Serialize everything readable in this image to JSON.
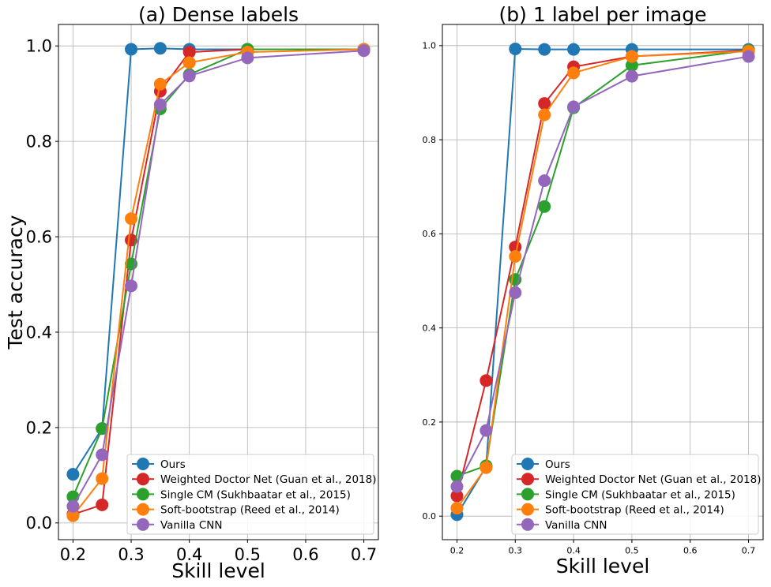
{
  "colors": {
    "Ours": "#1f77b4",
    "Weighted Doctor Net (Guan et al., 2018)": "#d62728",
    "Single CM (Sukhbaatar et al., 2015)": "#2ca02c",
    "Soft-bootstrap (Reed et al., 2014)": "#ff7f0e",
    "Vanilla CNN": "#9467bd"
  },
  "chart_data": [
    {
      "type": "line",
      "title": "(a) Dense labels",
      "xlabel": "Skill level",
      "ylabel": "Test accuracy",
      "xlim": [
        0.175,
        0.725
      ],
      "ylim": [
        -0.035,
        1.045
      ],
      "xticks": [
        0.2,
        0.3,
        0.4,
        0.5,
        0.6,
        0.7
      ],
      "xtick_labels": [
        "0.2",
        "0.3",
        "0.4",
        "0.5",
        "0.6",
        "0.7"
      ],
      "yticks": [
        0.0,
        0.2,
        0.4,
        0.6,
        0.8,
        1.0
      ],
      "ytick_labels": [
        "0.0",
        "0.2",
        "0.4",
        "0.6",
        "0.8",
        "1.0"
      ],
      "grid": true,
      "legend_position": "lower-right",
      "x": [
        0.2,
        0.25,
        0.3,
        0.35,
        0.4,
        0.5,
        0.7
      ],
      "series": [
        {
          "name": "Ours",
          "values": [
            0.102,
            0.198,
            0.993,
            0.995,
            0.993,
            0.993,
            0.993
          ]
        },
        {
          "name": "Weighted Doctor Net (Guan et al., 2018)",
          "values": [
            0.018,
            0.038,
            0.593,
            0.905,
            0.987,
            0.993,
            0.993
          ]
        },
        {
          "name": "Single CM (Sukhbaatar et al., 2015)",
          "values": [
            0.055,
            0.198,
            0.543,
            0.868,
            0.94,
            0.993,
            0.993
          ]
        },
        {
          "name": "Soft-bootstrap (Reed et al., 2014)",
          "values": [
            0.015,
            0.093,
            0.638,
            0.92,
            0.965,
            0.987,
            0.993
          ]
        },
        {
          "name": "Vanilla CNN",
          "values": [
            0.035,
            0.143,
            0.497,
            0.877,
            0.937,
            0.975,
            0.99
          ]
        }
      ]
    },
    {
      "type": "line",
      "title": "(b) 1 label per image",
      "xlabel": "Skill level",
      "ylabel": "",
      "xlim": [
        0.175,
        0.725
      ],
      "ylim": [
        -0.05,
        1.045
      ],
      "xticks": [
        0.2,
        0.3,
        0.4,
        0.5,
        0.6,
        0.7
      ],
      "xtick_labels": [
        "0.2",
        "0.3",
        "0.4",
        "0.5",
        "0.6",
        "0.7"
      ],
      "yticks": [
        0.0,
        0.2,
        0.4,
        0.6,
        0.8,
        1.0
      ],
      "ytick_labels": [
        "0.0",
        "0.2",
        "0.4",
        "0.6",
        "0.8",
        "1.0"
      ],
      "grid": true,
      "legend_position": "lower-right",
      "x": [
        0.2,
        0.25,
        0.3,
        0.35,
        0.4,
        0.5,
        0.7
      ],
      "series": [
        {
          "name": "Ours",
          "values": [
            0.003,
            0.105,
            0.993,
            0.992,
            0.992,
            0.992,
            0.992
          ]
        },
        {
          "name": "Weighted Doctor Net (Guan et al., 2018)",
          "values": [
            0.043,
            0.288,
            0.572,
            0.877,
            0.955,
            0.977,
            0.99
          ]
        },
        {
          "name": "Single CM (Sukhbaatar et al., 2015)",
          "values": [
            0.085,
            0.107,
            0.503,
            0.658,
            0.868,
            0.958,
            0.99
          ]
        },
        {
          "name": "Soft-bootstrap (Reed et al., 2014)",
          "values": [
            0.017,
            0.103,
            0.552,
            0.853,
            0.942,
            0.977,
            0.988
          ]
        },
        {
          "name": "Vanilla CNN",
          "values": [
            0.063,
            0.182,
            0.475,
            0.713,
            0.87,
            0.935,
            0.977
          ]
        }
      ]
    }
  ]
}
